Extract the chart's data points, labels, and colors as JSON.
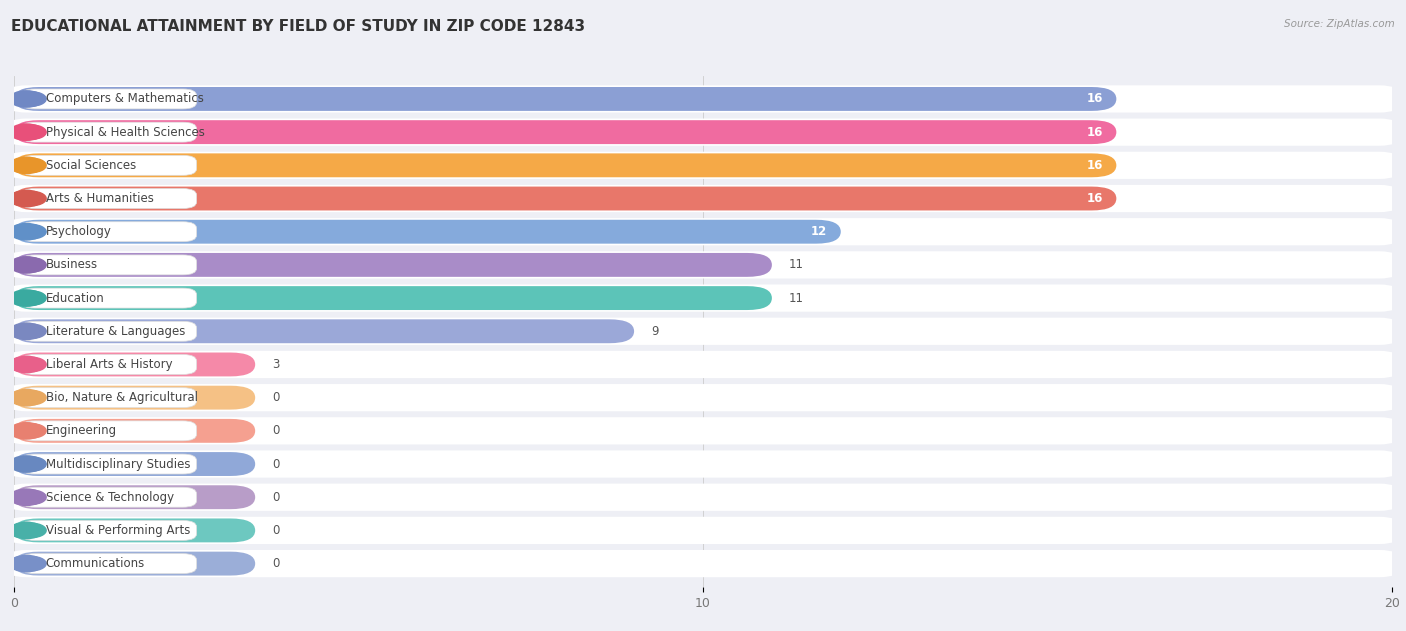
{
  "title": "EDUCATIONAL ATTAINMENT BY FIELD OF STUDY IN ZIP CODE 12843",
  "source": "Source: ZipAtlas.com",
  "categories": [
    "Computers & Mathematics",
    "Physical & Health Sciences",
    "Social Sciences",
    "Arts & Humanities",
    "Psychology",
    "Business",
    "Education",
    "Literature & Languages",
    "Liberal Arts & History",
    "Bio, Nature & Agricultural",
    "Engineering",
    "Multidisciplinary Studies",
    "Science & Technology",
    "Visual & Performing Arts",
    "Communications"
  ],
  "values": [
    16,
    16,
    16,
    16,
    12,
    11,
    11,
    9,
    3,
    0,
    0,
    0,
    0,
    0,
    0
  ],
  "bar_colors": [
    "#8B9FD4",
    "#F06BA0",
    "#F5A947",
    "#E8776A",
    "#85AADC",
    "#A98CC8",
    "#5CC4B8",
    "#9BA8D8",
    "#F589A8",
    "#F5C185",
    "#F5A090",
    "#90A8D8",
    "#B89DC8",
    "#6DC8C0",
    "#9BAED8"
  ],
  "dot_colors": [
    "#7088C4",
    "#E8507A",
    "#E8952A",
    "#D45A50",
    "#6090C8",
    "#8A6AAE",
    "#3AAAA0",
    "#7A88C0",
    "#E8608A",
    "#E8A860",
    "#E88070",
    "#6888C0",
    "#9878B8",
    "#48B0A8",
    "#7890C8"
  ],
  "xlim": [
    0,
    20
  ],
  "xticks": [
    0,
    10,
    20
  ],
  "background_color": "#eeeff5",
  "title_fontsize": 11,
  "label_fontsize": 8.5,
  "value_fontsize": 8.5
}
